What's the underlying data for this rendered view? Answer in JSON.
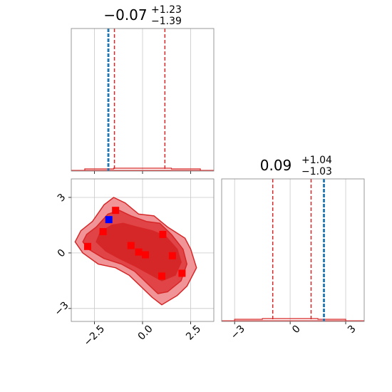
{
  "chart_data": [
    {
      "type": "histogram",
      "panel": "top-left",
      "title": {
        "value": "−0.07",
        "upper": "+1.23",
        "lower": "−1.39"
      },
      "xlim": [
        -3.7,
        3.7
      ],
      "hist_bins": [
        -3.0,
        -1.5,
        0.0,
        1.5,
        3.0
      ],
      "hist_values": [
        0.02,
        0.03,
        0.03,
        0.02
      ],
      "quantile_lines": [
        -1.46,
        -0.07,
        1.16
      ],
      "truth_lines": [
        -1.8,
        -1.75
      ],
      "x_ticks": [
        -2.5,
        0.0,
        2.5
      ],
      "x_tick_labels": [],
      "grid": true,
      "colors": {
        "hist": "#d62728",
        "quantile": "#d62728",
        "truth": "#1f77b4"
      }
    },
    {
      "type": "scatter",
      "panel": "bottom-left",
      "xlim": [
        -3.7,
        3.7
      ],
      "ylim": [
        -3.7,
        4.0
      ],
      "x_ticks": [
        -2.5,
        0.0,
        2.5
      ],
      "x_tick_labels": [
        "−2.5",
        "0.0",
        "2.5"
      ],
      "y_ticks": [
        -3,
        0,
        3
      ],
      "y_tick_labels": [
        "−3",
        "0",
        "3"
      ],
      "grid": true,
      "contours": [
        {
          "level": "outer",
          "fill": "#f09497",
          "points": [
            [
              -3.2,
              1.2
            ],
            [
              -2.6,
              1.7
            ],
            [
              -2.0,
              2.6
            ],
            [
              -1.5,
              3.0
            ],
            [
              -0.9,
              2.7
            ],
            [
              -0.2,
              2.1
            ],
            [
              0.6,
              2.0
            ],
            [
              1.3,
              1.4
            ],
            [
              2.2,
              0.8
            ],
            [
              2.5,
              0.2
            ],
            [
              2.8,
              -0.8
            ],
            [
              2.3,
              -1.8
            ],
            [
              1.8,
              -2.3
            ],
            [
              1.0,
              -2.8
            ],
            [
              0.5,
              -2.4
            ],
            [
              -0.1,
              -1.8
            ],
            [
              -0.7,
              -1.2
            ],
            [
              -1.4,
              -0.8
            ],
            [
              -2.3,
              -0.6
            ],
            [
              -3.1,
              0.0
            ],
            [
              -3.5,
              0.6
            ]
          ]
        },
        {
          "level": "middle",
          "fill": "#e04446",
          "points": [
            [
              -2.9,
              1.0
            ],
            [
              -2.4,
              1.4
            ],
            [
              -1.8,
              2.1
            ],
            [
              -1.2,
              2.3
            ],
            [
              -0.6,
              2.0
            ],
            [
              0.2,
              1.7
            ],
            [
              0.9,
              1.6
            ],
            [
              1.5,
              1.0
            ],
            [
              2.1,
              0.2
            ],
            [
              2.3,
              -0.6
            ],
            [
              2.0,
              -1.5
            ],
            [
              1.3,
              -2.1
            ],
            [
              0.8,
              -2.2
            ],
            [
              0.2,
              -1.6
            ],
            [
              -0.4,
              -1.0
            ],
            [
              -1.1,
              -0.6
            ],
            [
              -2.0,
              -0.3
            ],
            [
              -2.8,
              0.2
            ],
            [
              -3.1,
              0.6
            ]
          ]
        },
        {
          "level": "inner",
          "fill": "#d62728",
          "points": [
            [
              -2.2,
              1.1
            ],
            [
              -1.6,
              1.5
            ],
            [
              -1.0,
              1.6
            ],
            [
              -0.3,
              1.4
            ],
            [
              0.5,
              1.2
            ],
            [
              1.2,
              0.9
            ],
            [
              1.8,
              0.2
            ],
            [
              2.0,
              -0.5
            ],
            [
              1.7,
              -1.2
            ],
            [
              1.0,
              -1.5
            ],
            [
              0.3,
              -1.1
            ],
            [
              -0.4,
              -0.7
            ],
            [
              -1.2,
              -0.3
            ],
            [
              -1.9,
              0.1
            ],
            [
              -2.4,
              0.6
            ]
          ]
        }
      ],
      "samples_red": [
        [
          -2.85,
          0.35
        ],
        [
          -2.05,
          1.15
        ],
        [
          -1.4,
          2.3
        ],
        [
          -0.6,
          0.4
        ],
        [
          -0.2,
          0.05
        ],
        [
          0.15,
          -0.1
        ],
        [
          1.0,
          -1.25
        ],
        [
          1.05,
          1.0
        ],
        [
          1.55,
          -0.15
        ],
        [
          2.05,
          -1.1
        ]
      ],
      "truth_point": [
        -1.75,
        1.8
      ],
      "colors": {
        "sample": "#ff0000",
        "truth": "#0000ff"
      }
    },
    {
      "type": "histogram",
      "panel": "bottom-right",
      "title": {
        "value": "0.09",
        "upper": "+1.04",
        "lower": "−1.03"
      },
      "xlim": [
        -3.7,
        4.0
      ],
      "hist_bins": [
        -3.0,
        -1.5,
        0.0,
        1.5,
        3.0
      ],
      "hist_values": [
        0.02,
        0.03,
        0.03,
        0.02
      ],
      "quantile_lines": [
        -0.94,
        0.09,
        1.13
      ],
      "truth_lines": [
        1.8,
        1.85
      ],
      "x_ticks": [
        -3,
        0,
        3
      ],
      "x_tick_labels": [
        "−3",
        "0",
        "3"
      ],
      "grid": true,
      "colors": {
        "hist": "#d62728",
        "quantile": "#d62728",
        "truth": "#1f77b4"
      }
    }
  ]
}
